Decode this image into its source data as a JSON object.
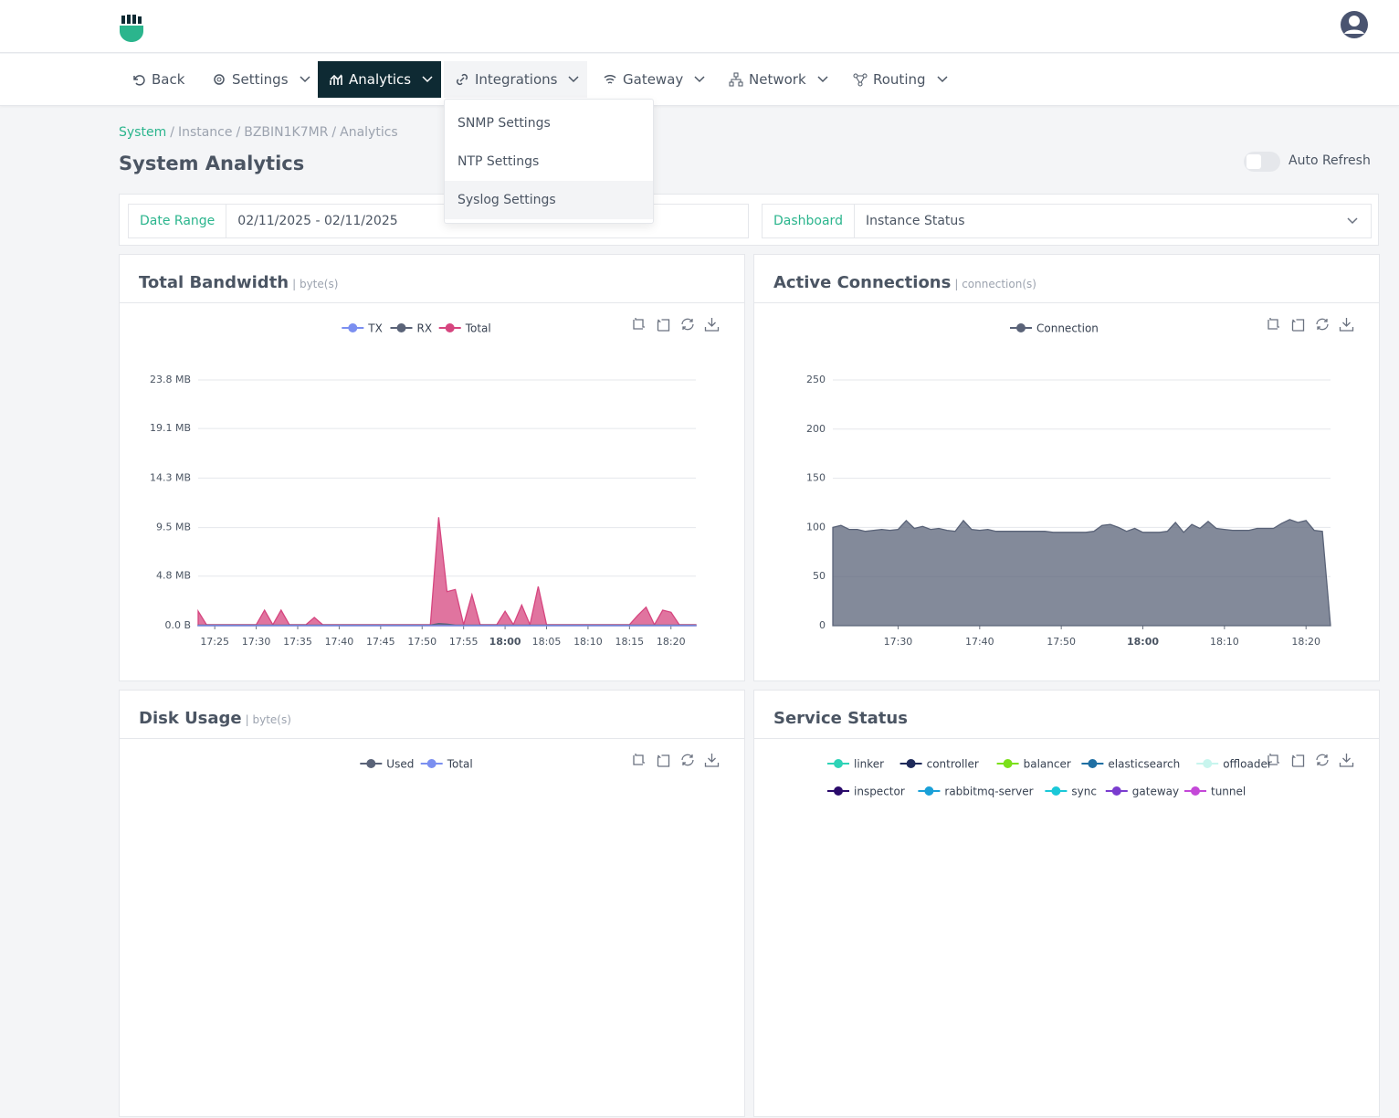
{
  "nav": [
    "Back",
    "Settings",
    "Analytics",
    "Integrations",
    "Gateway",
    "Network",
    "Routing"
  ],
  "dropdown": [
    "SNMP Settings",
    "NTP Settings",
    "Syslog Settings"
  ],
  "breadcrumb": [
    "System",
    "Instance",
    "BZBIN1K7MR",
    "Analytics"
  ],
  "breadcrumb_separator": "/",
  "title": "System Analytics",
  "auto_refresh": "Auto Refresh",
  "filters": {
    "date_range_label": "Date Range",
    "date_range": "02/11/2025 - 02/11/2025",
    "dashboard_label": "Dashboard",
    "dashboard": "Instance Status"
  },
  "chart_data": [
    {
      "type": "area",
      "title": "Total Bandwidth",
      "unit": "| byte(s)",
      "x": [
        "17:23",
        "17:24",
        "17:25",
        "17:26",
        "17:27",
        "17:28",
        "17:29",
        "17:30",
        "17:31",
        "17:32",
        "17:33",
        "17:34",
        "17:35",
        "17:36",
        "17:37",
        "17:38",
        "17:39",
        "17:40",
        "17:41",
        "17:42",
        "17:43",
        "17:44",
        "17:45",
        "17:46",
        "17:47",
        "17:48",
        "17:49",
        "17:50",
        "17:51",
        "17:52",
        "17:53",
        "17:54",
        "17:55",
        "17:56",
        "17:57",
        "17:58",
        "17:59",
        "18:00",
        "18:01",
        "18:02",
        "18:03",
        "18:04",
        "18:05",
        "18:06",
        "18:07",
        "18:08",
        "18:09",
        "18:10",
        "18:11",
        "18:12",
        "18:13",
        "18:14",
        "18:15",
        "18:16",
        "18:17",
        "18:18",
        "18:19",
        "18:20",
        "18:21",
        "18:22",
        "18:23"
      ],
      "xticks": [
        "17:25",
        "17:30",
        "17:35",
        "17:40",
        "17:45",
        "17:50",
        "17:55",
        "18:00",
        "18:05",
        "18:10",
        "18:15",
        "18:20"
      ],
      "ylim": [
        0,
        23.8
      ],
      "yticks": [
        {
          "value": 0,
          "label": "0.0 B"
        },
        {
          "value": 4.8,
          "label": "4.8 MB"
        },
        {
          "value": 9.5,
          "label": "9.5 MB"
        },
        {
          "value": 14.3,
          "label": "14.3 MB"
        },
        {
          "value": 19.1,
          "label": "19.1 MB"
        },
        {
          "value": 23.8,
          "label": "23.8 MB"
        }
      ],
      "grid": true,
      "series": [
        {
          "name": "TX",
          "color": "#7b8ff0",
          "values": [
            0.01,
            0.01,
            0.01,
            0.01,
            0.01,
            0.01,
            0.01,
            0.01,
            0.01,
            0.01,
            0.01,
            0.01,
            0.01,
            0.01,
            0.01,
            0.01,
            0.01,
            0.01,
            0.01,
            0.01,
            0.01,
            0.01,
            0.01,
            0.01,
            0.01,
            0.01,
            0.01,
            0.01,
            0.01,
            0.01,
            0.01,
            0.01,
            0.01,
            0.01,
            0.01,
            0.01,
            0.01,
            0.01,
            0.01,
            0.01,
            0.01,
            0.01,
            0.01,
            0.01,
            0.01,
            0.01,
            0.01,
            0.01,
            0.01,
            0.01,
            0.01,
            0.01,
            0.01,
            0.01,
            0.01,
            0.01,
            0.01,
            0.01,
            0.01,
            0.01,
            0.01
          ]
        },
        {
          "name": "RX",
          "color": "#5a6378",
          "values": [
            0.05,
            0.05,
            0.05,
            0.05,
            0.05,
            0.05,
            0.05,
            0.05,
            0.05,
            0.05,
            0.05,
            0.05,
            0.05,
            0.05,
            0.05,
            0.05,
            0.05,
            0.05,
            0.05,
            0.05,
            0.05,
            0.05,
            0.05,
            0.05,
            0.05,
            0.05,
            0.05,
            0.05,
            0.05,
            0.2,
            0.15,
            0.05,
            0.05,
            0.05,
            0.05,
            0.05,
            0.05,
            0.05,
            0.05,
            0.05,
            0.05,
            0.05,
            0.05,
            0.05,
            0.05,
            0.05,
            0.05,
            0.05,
            0.05,
            0.05,
            0.05,
            0.05,
            0.05,
            0.05,
            0.05,
            0.05,
            0.05,
            0.05,
            0.05,
            0.05,
            0.05
          ]
        },
        {
          "name": "Total",
          "color": "#d6457f",
          "values": [
            1.4,
            0.1,
            0.1,
            0.1,
            0.1,
            0.1,
            0.1,
            0.1,
            1.5,
            0.1,
            1.5,
            0.1,
            0.1,
            0.1,
            0.8,
            0.1,
            0.1,
            0.1,
            0.1,
            0.1,
            0.1,
            0.1,
            0.1,
            0.1,
            0.1,
            0.1,
            0.1,
            0.1,
            0.1,
            10.5,
            3.3,
            3.5,
            0.1,
            3.0,
            0.1,
            0.1,
            0.1,
            1.4,
            0.1,
            2.0,
            0.1,
            3.8,
            0.1,
            0.1,
            0.1,
            0.1,
            0.1,
            0.1,
            0.1,
            0.1,
            0.1,
            0.1,
            0.1,
            1.0,
            1.8,
            0.1,
            1.5,
            1.3,
            0.1,
            0.1,
            0.1
          ]
        }
      ]
    },
    {
      "type": "area",
      "title": "Active Connections",
      "unit": "| connection(s)",
      "x": [
        "17:22",
        "17:23",
        "17:24",
        "17:25",
        "17:26",
        "17:27",
        "17:28",
        "17:29",
        "17:30",
        "17:31",
        "17:32",
        "17:33",
        "17:34",
        "17:35",
        "17:36",
        "17:37",
        "17:38",
        "17:39",
        "17:40",
        "17:41",
        "17:42",
        "17:43",
        "17:44",
        "17:45",
        "17:46",
        "17:47",
        "17:48",
        "17:49",
        "17:50",
        "17:51",
        "17:52",
        "17:53",
        "17:54",
        "17:55",
        "17:56",
        "17:57",
        "17:58",
        "17:59",
        "18:00",
        "18:01",
        "18:02",
        "18:03",
        "18:04",
        "18:05",
        "18:06",
        "18:07",
        "18:08",
        "18:09",
        "18:10",
        "18:11",
        "18:12",
        "18:13",
        "18:14",
        "18:15",
        "18:16",
        "18:17",
        "18:18",
        "18:19",
        "18:20",
        "18:21",
        "18:22",
        "18:23"
      ],
      "xticks": [
        "17:30",
        "17:40",
        "17:50",
        "18:00",
        "18:10",
        "18:20"
      ],
      "ylim": [
        0,
        250
      ],
      "yticks": [
        0,
        50,
        100,
        150,
        200,
        250
      ],
      "grid": true,
      "series": [
        {
          "name": "Connection",
          "color": "#5a6378",
          "values": [
            100,
            102,
            98,
            98,
            96,
            97,
            98,
            97,
            98,
            107,
            99,
            101,
            98,
            99,
            97,
            96,
            107,
            98,
            97,
            98,
            96,
            96,
            96,
            96,
            96,
            96,
            96,
            95,
            95,
            95,
            95,
            95,
            96,
            102,
            103,
            100,
            96,
            99,
            95,
            95,
            95,
            96,
            105,
            95,
            103,
            99,
            106,
            99,
            98,
            97,
            97,
            97,
            99,
            99,
            99,
            104,
            108,
            105,
            107,
            97,
            96,
            0
          ]
        }
      ]
    },
    {
      "type": "line",
      "title": "Disk Usage",
      "unit": "| byte(s)",
      "series": [
        {
          "name": "Used",
          "color": "#5a6378"
        },
        {
          "name": "Total",
          "color": "#7b8ff0"
        }
      ]
    },
    {
      "type": "line",
      "title": "Service Status",
      "series": [
        {
          "name": "linker",
          "color": "#2ed3b7"
        },
        {
          "name": "controller",
          "color": "#1e2a5a"
        },
        {
          "name": "balancer",
          "color": "#7be01a"
        },
        {
          "name": "elasticsearch",
          "color": "#1f6fa3"
        },
        {
          "name": "offloader",
          "color": "#c8f5ee"
        },
        {
          "name": "inspector",
          "color": "#2a0a6b"
        },
        {
          "name": "rabbitmq-server",
          "color": "#1aa0d8"
        },
        {
          "name": "sync",
          "color": "#1ac8d8"
        },
        {
          "name": "gateway",
          "color": "#7a3ccf"
        },
        {
          "name": "tunnel",
          "color": "#c448d8"
        }
      ]
    }
  ]
}
